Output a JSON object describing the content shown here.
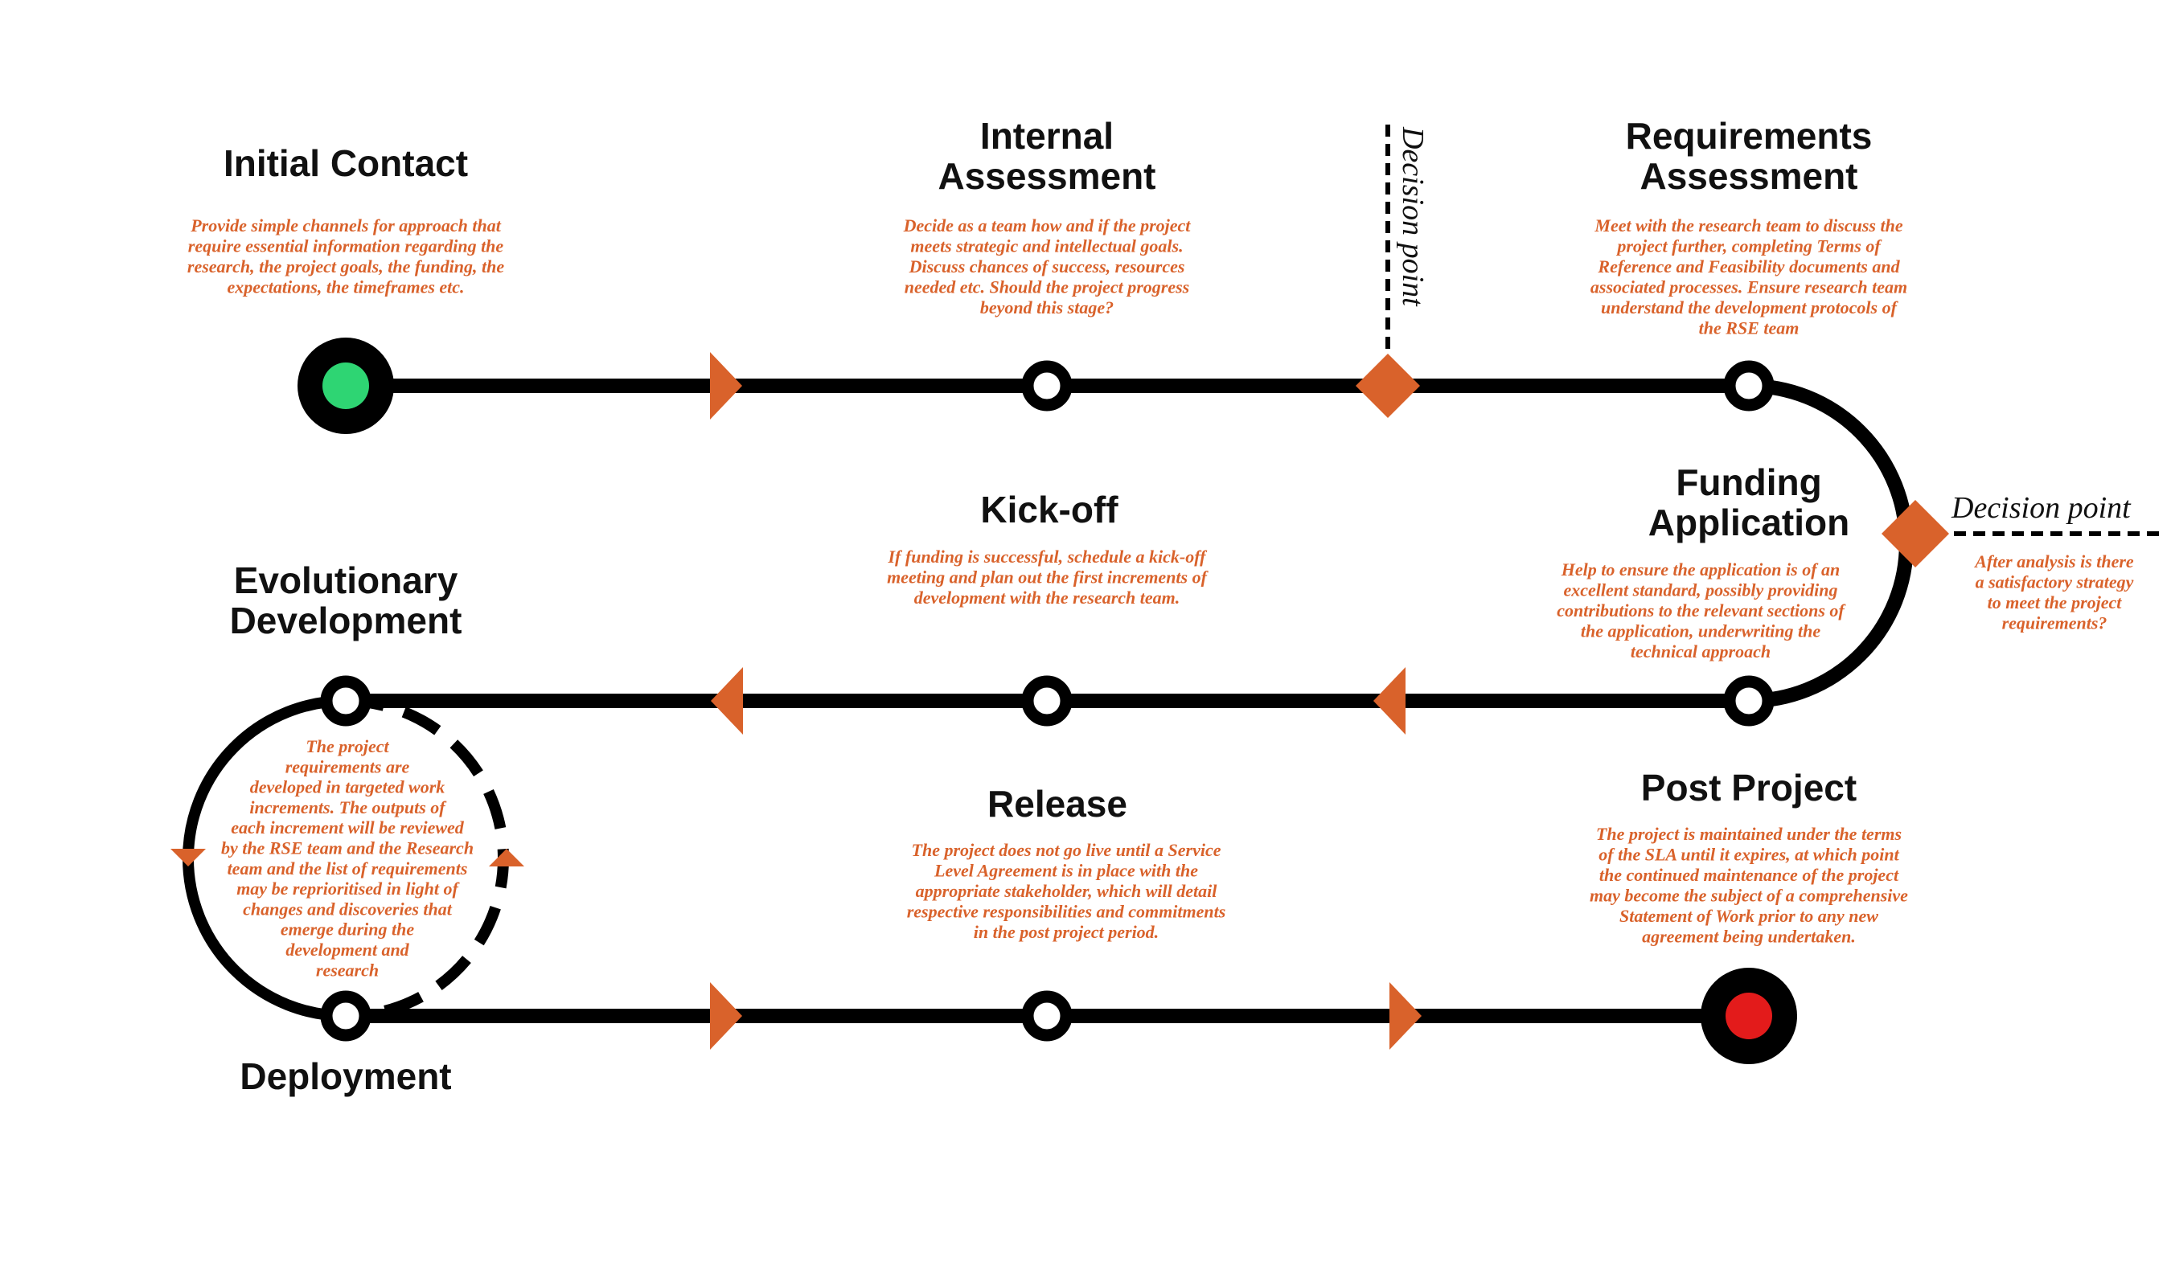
{
  "colors": {
    "track": "#000000",
    "accent": "#d9622b",
    "start_dot": "#2ed573",
    "end_dot": "#e31b1b",
    "description_text": "#d9622b"
  },
  "stages": {
    "initial_contact": {
      "title": [
        "Initial Contact"
      ],
      "description": [
        "Provide simple channels for approach that",
        "require essential information regarding the",
        "research, the project goals, the funding, the",
        "expectations, the timeframes etc."
      ]
    },
    "internal_assessment": {
      "title": [
        "Internal",
        "Assessment"
      ],
      "description": [
        "Decide as a team how and if the project",
        "meets strategic and intellectual goals.",
        "Discuss chances of success, resources",
        "needed etc. Should the project progress",
        "beyond this stage?"
      ]
    },
    "requirements_assessment": {
      "title": [
        "Requirements",
        "Assessment"
      ],
      "description": [
        "Meet with the research team to discuss the",
        "project further, completing Terms of",
        "Reference and Feasibility documents and",
        "associated processes. Ensure research team",
        "understand the development protocols of",
        "the RSE team"
      ]
    },
    "funding_application": {
      "title": [
        "Funding",
        "Application"
      ],
      "description": [
        "Help to ensure the application is of an",
        "excellent standard, possibly providing",
        "contributions to the relevant sections of",
        "the application, underwriting the",
        "technical approach"
      ]
    },
    "kick_off": {
      "title": [
        "Kick-off"
      ],
      "description": [
        "If funding is successful, schedule a kick-off",
        "meeting and plan out the first increments of",
        "development with the research team."
      ]
    },
    "evolutionary_development": {
      "title": [
        "Evolutionary",
        "Development"
      ],
      "description": [
        "The project",
        "requirements are",
        "developed in targeted work",
        "increments. The outputs of",
        "each increment will be reviewed",
        "by the RSE team and the Research",
        "team and the list of requirements",
        "may be reprioritised in light of",
        "changes and discoveries that",
        "emerge during the",
        "development and",
        "research"
      ]
    },
    "deployment": {
      "title": [
        "Deployment"
      ]
    },
    "release": {
      "title": [
        "Release"
      ],
      "description": [
        "The project does not go live until a Service",
        "Level Agreement is in place with the",
        "appropriate stakeholder, which will detail",
        "respective responsibilities and commitments",
        "in the post project period."
      ]
    },
    "post_project": {
      "title": [
        "Post Project"
      ],
      "description": [
        "The project is maintained under the terms",
        "of the SLA until it expires, at which point",
        "the continued maintenance of the project",
        "may become the subject of a comprehensive",
        "Statement of Work prior to any new",
        "agreement being undertaken."
      ]
    }
  },
  "decision_points": {
    "top": {
      "label": "Decision point"
    },
    "right": {
      "label": "Decision point",
      "description": [
        "After analysis is there",
        "a satisfactory strategy",
        "to meet the project",
        "requirements?"
      ]
    }
  }
}
